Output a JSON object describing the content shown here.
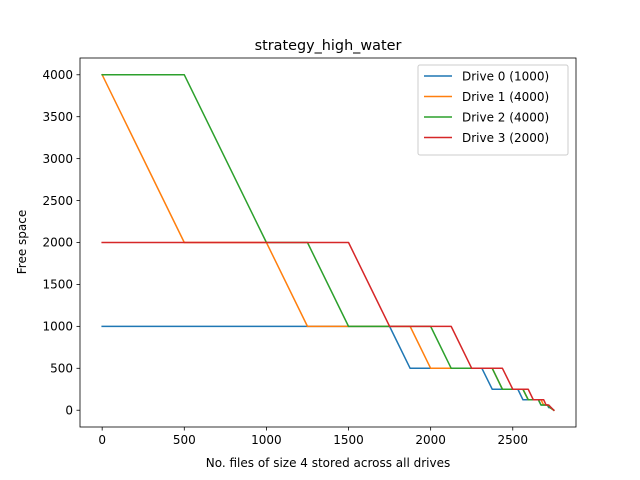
{
  "chart_data": {
    "type": "line",
    "title": "strategy_high_water",
    "xlabel": "No. files of size 4 stored across all drives",
    "ylabel": "Free space",
    "xlim": [
      -135,
      2885
    ],
    "ylim": [
      -200,
      4200
    ],
    "xticks": [
      0,
      500,
      1000,
      1500,
      2000,
      2500
    ],
    "yticks": [
      0,
      500,
      1000,
      1500,
      2000,
      2500,
      3000,
      3500,
      4000
    ],
    "grid": false,
    "legend_position": "top-right",
    "series": [
      {
        "name": "Drive 0 (1000)",
        "color": "#1f77b4",
        "points": [
          [
            0,
            1000
          ],
          [
            1750,
            1000
          ],
          [
            1875,
            500
          ],
          [
            2000,
            500
          ],
          [
            2312,
            500
          ],
          [
            2375,
            250
          ],
          [
            2500,
            250
          ],
          [
            2531,
            250
          ],
          [
            2562,
            125
          ],
          [
            2625,
            125
          ],
          [
            2656,
            125
          ],
          [
            2672,
            62
          ],
          [
            2703,
            62
          ],
          [
            2711,
            62
          ],
          [
            2719,
            31
          ],
          [
            2734,
            31
          ],
          [
            2750,
            0
          ]
        ]
      },
      {
        "name": "Drive 1 (4000)",
        "color": "#ff7f0e",
        "points": [
          [
            0,
            4000
          ],
          [
            500,
            2000
          ],
          [
            1000,
            2000
          ],
          [
            1250,
            1000
          ],
          [
            1500,
            1000
          ],
          [
            1750,
            1000
          ],
          [
            1875,
            1000
          ],
          [
            2000,
            500
          ],
          [
            2125,
            500
          ],
          [
            2312,
            500
          ],
          [
            2375,
            500
          ],
          [
            2437,
            250
          ],
          [
            2500,
            250
          ],
          [
            2562,
            250
          ],
          [
            2594,
            125
          ],
          [
            2625,
            125
          ],
          [
            2672,
            125
          ],
          [
            2688,
            62
          ],
          [
            2711,
            62
          ],
          [
            2727,
            31
          ],
          [
            2750,
            0
          ]
        ]
      },
      {
        "name": "Drive 2 (4000)",
        "color": "#2ca02c",
        "points": [
          [
            0,
            4000
          ],
          [
            500,
            4000
          ],
          [
            1000,
            2000
          ],
          [
            1250,
            2000
          ],
          [
            1500,
            1000
          ],
          [
            1750,
            1000
          ],
          [
            2000,
            1000
          ],
          [
            2125,
            500
          ],
          [
            2375,
            500
          ],
          [
            2437,
            250
          ],
          [
            2562,
            250
          ],
          [
            2594,
            125
          ],
          [
            2656,
            125
          ],
          [
            2672,
            62
          ],
          [
            2711,
            62
          ],
          [
            2727,
            31
          ],
          [
            2750,
            0
          ]
        ]
      },
      {
        "name": "Drive 3 (2000)",
        "color": "#d62728",
        "points": [
          [
            0,
            2000
          ],
          [
            1500,
            2000
          ],
          [
            1750,
            1000
          ],
          [
            2125,
            1000
          ],
          [
            2250,
            500
          ],
          [
            2437,
            500
          ],
          [
            2500,
            250
          ],
          [
            2594,
            250
          ],
          [
            2625,
            125
          ],
          [
            2688,
            125
          ],
          [
            2703,
            62
          ],
          [
            2719,
            62
          ],
          [
            2734,
            31
          ],
          [
            2750,
            0
          ]
        ]
      }
    ]
  }
}
